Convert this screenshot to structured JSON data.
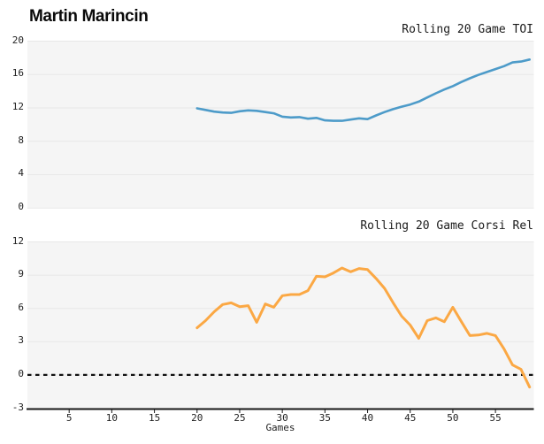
{
  "header": {
    "title": "Martin Marincin"
  },
  "axis": {
    "xlabel": "Games"
  },
  "colors": {
    "toi_line": "#4d9bc9",
    "corsi_line": "#fba844",
    "plot_bg": "#f5f5f5",
    "grid": "#e8e8e8",
    "axis_line": "#1a1a1a",
    "zero_line": "#111111",
    "text": "#222222"
  },
  "chart_data": [
    {
      "type": "line",
      "title": "Rolling 20 Game TOI",
      "xlabel": "Games",
      "ylabel": "",
      "xlim": [
        0,
        59.5
      ],
      "ylim": [
        0,
        20
      ],
      "yticks": [
        0,
        4,
        8,
        12,
        16,
        20
      ],
      "xticks": [
        5,
        10,
        15,
        20,
        25,
        30,
        35,
        40,
        45,
        50,
        55
      ],
      "grid": true,
      "legend": "none",
      "line_color": "#4d9bc9",
      "series": [
        {
          "name": "Rolling 20 Game TOI",
          "x": [
            20,
            21,
            22,
            23,
            24,
            25,
            26,
            27,
            28,
            29,
            30,
            31,
            32,
            33,
            34,
            35,
            36,
            37,
            38,
            39,
            40,
            41,
            42,
            43,
            44,
            45,
            46,
            47,
            48,
            49,
            50,
            51,
            52,
            53,
            54,
            55,
            56,
            57,
            58,
            59
          ],
          "values": [
            11.95,
            11.75,
            11.55,
            11.45,
            11.4,
            11.6,
            11.7,
            11.65,
            11.5,
            11.35,
            10.95,
            10.85,
            10.9,
            10.7,
            10.8,
            10.5,
            10.45,
            10.45,
            10.6,
            10.75,
            10.65,
            11.1,
            11.5,
            11.85,
            12.15,
            12.4,
            12.75,
            13.25,
            13.75,
            14.2,
            14.6,
            15.1,
            15.55,
            15.95,
            16.3,
            16.65,
            17.0,
            17.45,
            17.55,
            17.8
          ]
        }
      ]
    },
    {
      "type": "line",
      "title": "Rolling 20 Game Corsi Rel",
      "xlabel": "Games",
      "ylabel": "",
      "xlim": [
        0,
        59.5
      ],
      "ylim": [
        -3,
        12
      ],
      "yticks": [
        -3,
        0,
        3,
        6,
        9,
        12
      ],
      "xticks": [
        5,
        10,
        15,
        20,
        25,
        30,
        35,
        40,
        45,
        50,
        55
      ],
      "grid": true,
      "legend": "none",
      "zero_line": "dashed",
      "line_color": "#fba844",
      "series": [
        {
          "name": "Rolling 20 Game Corsi Rel",
          "x": [
            20,
            21,
            22,
            23,
            24,
            25,
            26,
            27,
            28,
            29,
            30,
            31,
            32,
            33,
            34,
            35,
            36,
            37,
            38,
            39,
            40,
            41,
            42,
            43,
            44,
            45,
            46,
            47,
            48,
            49,
            50,
            51,
            52,
            53,
            54,
            55,
            56,
            57,
            58,
            59
          ],
          "values": [
            4.25,
            4.9,
            5.7,
            6.35,
            6.5,
            6.15,
            6.25,
            4.75,
            6.4,
            6.1,
            7.15,
            7.25,
            7.25,
            7.6,
            8.9,
            8.85,
            9.2,
            9.65,
            9.3,
            9.6,
            9.5,
            8.7,
            7.8,
            6.5,
            5.3,
            4.5,
            3.3,
            4.9,
            5.15,
            4.8,
            6.1,
            4.8,
            3.55,
            3.6,
            3.75,
            3.55,
            2.35,
            0.9,
            0.5,
            -1.1
          ]
        }
      ]
    }
  ]
}
